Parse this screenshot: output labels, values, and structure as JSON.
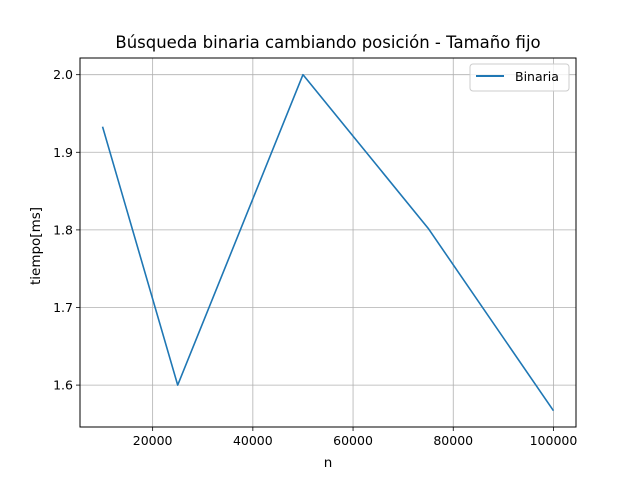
{
  "chart_data": {
    "type": "line",
    "title": "Búsqueda binaria cambiando posición - Tamaño fijo",
    "xlabel": "n",
    "ylabel": "tiempo[ms]",
    "xlim": [
      5500,
      104500
    ],
    "ylim": [
      1.546,
      2.0215
    ],
    "x_ticks": [
      20000,
      40000,
      60000,
      80000,
      100000
    ],
    "y_ticks": [
      1.6,
      1.7,
      1.8,
      1.9,
      2.0
    ],
    "x_tick_labels": [
      "20000",
      "40000",
      "60000",
      "80000",
      "100000"
    ],
    "y_tick_labels": [
      "1.6",
      "1.7",
      "1.8",
      "1.9",
      "2.0"
    ],
    "grid": true,
    "legend_position": "top-right",
    "series": [
      {
        "name": "Binaria",
        "color": "#1f77b4",
        "x": [
          10000,
          25000,
          50000,
          75000,
          100000
        ],
        "y": [
          1.933,
          1.6,
          2.0,
          1.802,
          1.567
        ]
      }
    ]
  }
}
